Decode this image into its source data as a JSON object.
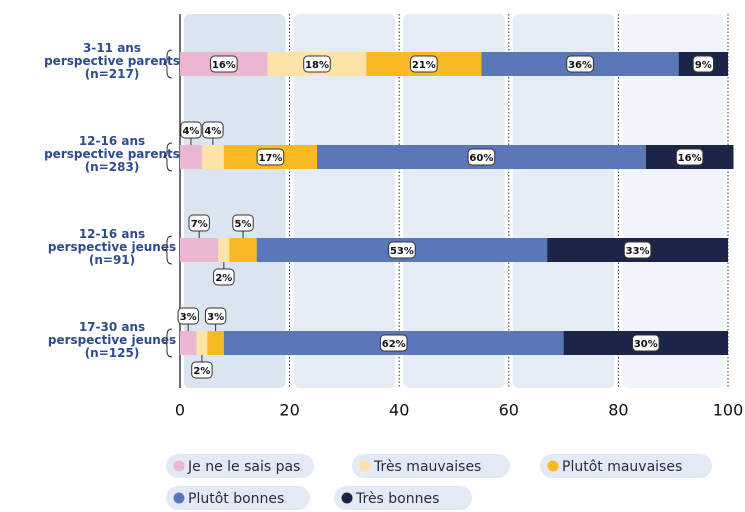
{
  "chart_data": {
    "type": "stacked-barh",
    "categories": [
      [
        "3-11 ans",
        "perspective parents",
        "(n=217)"
      ],
      [
        "12-16 ans",
        "perspective parents",
        "(n=283)"
      ],
      [
        "12-16 ans",
        "perspective jeunes",
        "(n=91)"
      ],
      [
        "17-30 ans",
        "perspective jeunes",
        "(n=125)"
      ]
    ],
    "series": [
      {
        "name": "Je ne le sais pas",
        "color": "#eab6d2",
        "values": [
          16,
          4,
          7,
          3
        ],
        "value_labels": [
          "16%",
          "4%",
          "7%",
          "3%"
        ]
      },
      {
        "name": "Très mauvaises",
        "color": "#fde4a6",
        "values": [
          18,
          4,
          2,
          2
        ],
        "value_labels": [
          "18%",
          "4%",
          "2%",
          "2%"
        ]
      },
      {
        "name": "Plutôt mauvaises",
        "color": "#f8ba22",
        "values": [
          21,
          17,
          5,
          3
        ],
        "value_labels": [
          "21%",
          "17%",
          "5%",
          "3%"
        ]
      },
      {
        "name": "Plutôt bonnes",
        "color": "#5a77b7",
        "values": [
          36,
          60,
          53,
          62
        ],
        "value_labels": [
          "36%",
          "60%",
          "53%",
          "62%"
        ]
      },
      {
        "name": "Très bonnes",
        "color": "#1c2448",
        "values": [
          9,
          16,
          33,
          30
        ],
        "value_labels": [
          "9%",
          "16%",
          "33%",
          "30%"
        ]
      }
    ],
    "xlim": [
      0,
      100
    ],
    "xticks": [
      0,
      20,
      40,
      60,
      80,
      100
    ],
    "grid": true
  }
}
